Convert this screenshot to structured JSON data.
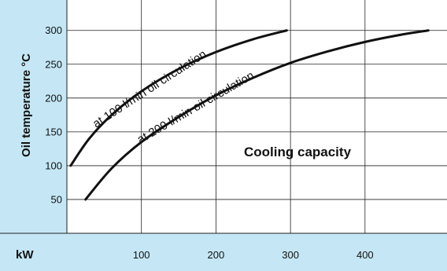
{
  "colors": {
    "panel_bg": "#c5e7f5",
    "plot_bg": "#ffffff",
    "grid": "#222222",
    "curve": "#111111",
    "text": "#111111"
  },
  "labels": {
    "y_axis_title": "Oil temperature °C",
    "x_unit": "kW",
    "annotation": "Cooling capacity"
  },
  "chart_data": {
    "type": "line",
    "title": "",
    "xlabel": "kW",
    "ylabel": "Oil temperature °C",
    "xlim": [
      0,
      510
    ],
    "ylim": [
      0,
      345
    ],
    "x_ticks": [
      100,
      200,
      300,
      400
    ],
    "x_tick_labels": [
      "100",
      "200",
      "300",
      "400"
    ],
    "y_ticks": [
      50,
      100,
      150,
      200,
      250,
      300
    ],
    "y_tick_labels": [
      "50",
      "100",
      "150",
      "200",
      "250",
      "300"
    ],
    "grid": true,
    "annotation": "Cooling capacity",
    "series": [
      {
        "name": "at 100 l/min oil circulation",
        "x": [
          5,
          30,
          60,
          100,
          150,
          200,
          250,
          295
        ],
        "y": [
          100,
          140,
          175,
          210,
          243,
          268,
          287,
          300
        ]
      },
      {
        "name": "at 200 l/min oil circulation",
        "x": [
          25,
          60,
          100,
          150,
          200,
          250,
          300,
          350,
          400,
          450,
          485
        ],
        "y": [
          50,
          96,
          135,
          172,
          204,
          230,
          252,
          269,
          283,
          294,
          300
        ]
      }
    ]
  }
}
